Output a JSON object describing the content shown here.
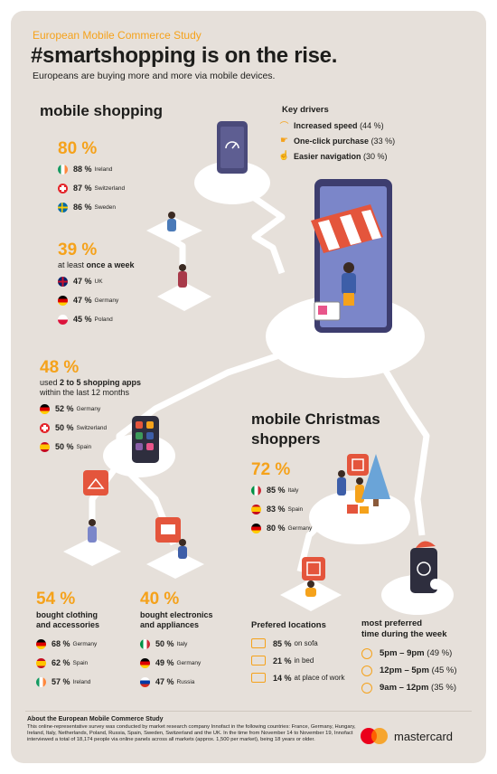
{
  "header": {
    "kicker": "European Mobile Commerce Study",
    "title": "#smartshopping is on the rise.",
    "subtitle": "Europeans are buying more and more via mobile devices."
  },
  "mobile_shopping": {
    "title": "mobile shopping",
    "stat1": {
      "value": "80 %",
      "rows": [
        {
          "pct": "88 %",
          "country": "Ireland"
        },
        {
          "pct": "87 %",
          "country": "Switzerland"
        },
        {
          "pct": "86 %",
          "country": "Sweden"
        }
      ]
    },
    "stat2": {
      "value": "39 %",
      "desc_pre": "at least ",
      "desc_bold": "once a week",
      "rows": [
        {
          "pct": "47 %",
          "country": "UK"
        },
        {
          "pct": "47 %",
          "country": "Germany"
        },
        {
          "pct": "45 %",
          "country": "Poland"
        }
      ]
    },
    "stat3": {
      "value": "48 %",
      "desc_pre": "used ",
      "desc_bold": "2 to 5 shopping apps",
      "desc_post": "within the last 12 months",
      "rows": [
        {
          "pct": "52 %",
          "country": "Germany"
        },
        {
          "pct": "50 %",
          "country": "Switzerland"
        },
        {
          "pct": "50 %",
          "country": "Spain"
        }
      ]
    },
    "stat4": {
      "value": "54 %",
      "desc1": "bought clothing",
      "desc2": "and accessories",
      "rows": [
        {
          "pct": "68 %",
          "country": "Germany"
        },
        {
          "pct": "62 %",
          "country": "Spain"
        },
        {
          "pct": "57 %",
          "country": "Ireland"
        }
      ]
    },
    "stat5": {
      "value": "40 %",
      "desc1": "bought electronics",
      "desc2": "and appliances",
      "rows": [
        {
          "pct": "50 %",
          "country": "Italy"
        },
        {
          "pct": "49 %",
          "country": "Germany"
        },
        {
          "pct": "47 %",
          "country": "Russia"
        }
      ]
    }
  },
  "key_drivers": {
    "title": "Key drivers",
    "items": [
      {
        "label": "Increased speed",
        "pct": "(44 %)",
        "icon": "speedometer-icon"
      },
      {
        "label": "One-click purchase",
        "pct": "(33 %)",
        "icon": "hand-click-icon"
      },
      {
        "label": "Easier navigation",
        "pct": "(30 %)",
        "icon": "hand-swipe-icon"
      }
    ]
  },
  "christmas": {
    "title1": "mobile Christmas",
    "title2": "shoppers",
    "value": "72 %",
    "rows": [
      {
        "pct": "85 %",
        "country": "Italy"
      },
      {
        "pct": "83 %",
        "country": "Spain"
      },
      {
        "pct": "80 %",
        "country": "Germany"
      }
    ]
  },
  "locations": {
    "title": "Prefered locations",
    "items": [
      {
        "pct": "85 %",
        "label": "on sofa",
        "icon": "sofa-icon"
      },
      {
        "pct": "21 %",
        "label": "in bed",
        "icon": "bed-icon"
      },
      {
        "pct": "14 %",
        "label": "at place of work",
        "icon": "desk-icon"
      }
    ]
  },
  "times": {
    "title1": "most preferred",
    "title2": "time during the week",
    "items": [
      {
        "time": "5pm – 9pm",
        "pct": "(49 %)"
      },
      {
        "time": "12pm – 5pm",
        "pct": "(45 %)"
      },
      {
        "time": "9am – 12pm",
        "pct": "(35 %)"
      }
    ]
  },
  "footer": {
    "title": "About the European Mobile Commerce Study",
    "text": "This online-representative survey was conducted by market research company Innofact in the following countries: France, Germany, Hungary, Ireland, Italy, Netherlands, Poland, Russia, Spain, Sweden, Switzerland and the UK. In the time from November 14 to November 19, Innofact interviewed a total of 18,174 people via online panels across all markets (approx. 1,500 per market), being 18 years or older.",
    "brand": "mastercard"
  },
  "colors": {
    "accent": "#f5a21b",
    "background": "#e6e0da",
    "text": "#1d1d1b",
    "phone": "#4a4a7a"
  }
}
